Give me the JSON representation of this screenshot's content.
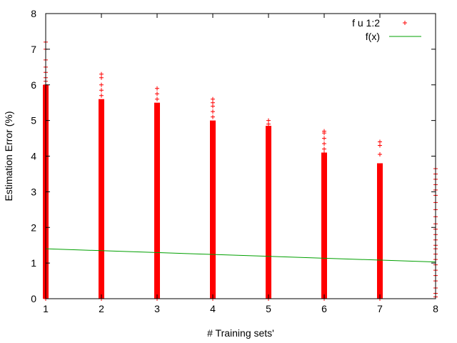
{
  "chart_data": {
    "type": "scatter",
    "xlabel": "# Training sets'",
    "ylabel": "Estimation Error (%)",
    "xlim": [
      1,
      8
    ],
    "ylim": [
      0,
      8
    ],
    "x_ticks": [
      "1",
      "2",
      "3",
      "4",
      "5",
      "6",
      "7",
      "8"
    ],
    "y_ticks": [
      "0",
      "1",
      "2",
      "3",
      "4",
      "5",
      "6",
      "7",
      "8"
    ],
    "grid": false,
    "legend_position": "top-right",
    "series": [
      {
        "name": "f u 1:2",
        "kind": "scatter",
        "marker": "plus",
        "color": "#ff0000",
        "columns": [
          {
            "x": 1,
            "dense_min": 0.0,
            "dense_max": 6.0,
            "outliers": [
              6.1,
              6.2,
              6.35,
              6.5,
              6.7,
              7.0,
              7.2
            ]
          },
          {
            "x": 2,
            "dense_min": 0.0,
            "dense_max": 5.6,
            "outliers": [
              5.7,
              5.85,
              6.0,
              6.2,
              6.3
            ]
          },
          {
            "x": 3,
            "dense_min": 0.0,
            "dense_max": 5.5,
            "outliers": [
              5.6,
              5.75,
              5.9
            ]
          },
          {
            "x": 4,
            "dense_min": 0.0,
            "dense_max": 5.0,
            "outliers": [
              5.1,
              5.25,
              5.4,
              5.5,
              5.6
            ]
          },
          {
            "x": 5,
            "dense_min": 0.0,
            "dense_max": 4.85,
            "outliers": [
              4.9,
              5.0
            ]
          },
          {
            "x": 6,
            "dense_min": 0.0,
            "dense_max": 4.1,
            "outliers": [
              4.2,
              4.35,
              4.5,
              4.65,
              4.7
            ]
          },
          {
            "x": 7,
            "dense_min": 0.0,
            "dense_max": 3.8,
            "outliers": [
              4.05,
              4.3,
              4.4
            ]
          },
          {
            "x": 8,
            "dense_min": 0.0,
            "dense_max": 0.0,
            "outliers": [
              0.05,
              0.15,
              0.3,
              0.5,
              0.65,
              0.8,
              0.95,
              1.1,
              1.25,
              1.4,
              1.5,
              1.65,
              1.8,
              1.95,
              2.1,
              2.3,
              2.5,
              2.7,
              2.9,
              3.05,
              3.2,
              3.35,
              3.5,
              3.65
            ]
          }
        ]
      },
      {
        "name": "f(x)",
        "kind": "line",
        "color": "#00a000",
        "x": [
          1,
          8
        ],
        "y": [
          1.4,
          1.03
        ]
      }
    ]
  }
}
